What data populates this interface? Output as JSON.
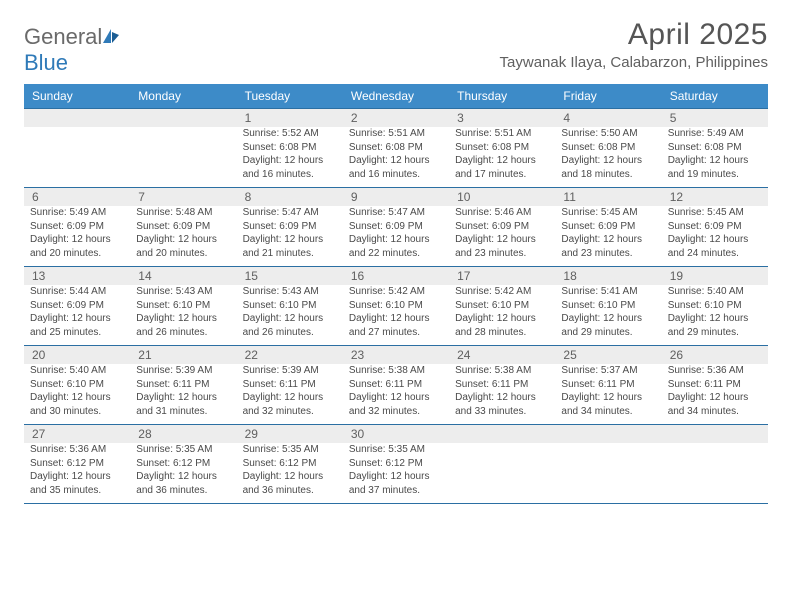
{
  "brand": {
    "part1": "General",
    "part2": "Blue"
  },
  "title": "April 2025",
  "location": "Taywanak Ilaya, Calabarzon, Philippines",
  "weekdays": [
    "Sunday",
    "Monday",
    "Tuesday",
    "Wednesday",
    "Thursday",
    "Friday",
    "Saturday"
  ],
  "colors": {
    "header_bg": "#3d8bc8",
    "header_text": "#ffffff",
    "rule": "#2b6fa3",
    "daynum_bg": "#ededed",
    "body_text": "#4a4a4a",
    "title_text": "#555555",
    "logo_gray": "#6a6a6a",
    "logo_blue": "#2f7ab8"
  },
  "typography": {
    "title_fontsize": 30,
    "location_fontsize": 15,
    "weekday_fontsize": 12,
    "daynum_fontsize": 12,
    "cell_fontsize": 10
  },
  "weeks": [
    [
      null,
      null,
      {
        "n": "1",
        "sr": "Sunrise: 5:52 AM",
        "ss": "Sunset: 6:08 PM",
        "d1": "Daylight: 12 hours",
        "d2": "and 16 minutes."
      },
      {
        "n": "2",
        "sr": "Sunrise: 5:51 AM",
        "ss": "Sunset: 6:08 PM",
        "d1": "Daylight: 12 hours",
        "d2": "and 16 minutes."
      },
      {
        "n": "3",
        "sr": "Sunrise: 5:51 AM",
        "ss": "Sunset: 6:08 PM",
        "d1": "Daylight: 12 hours",
        "d2": "and 17 minutes."
      },
      {
        "n": "4",
        "sr": "Sunrise: 5:50 AM",
        "ss": "Sunset: 6:08 PM",
        "d1": "Daylight: 12 hours",
        "d2": "and 18 minutes."
      },
      {
        "n": "5",
        "sr": "Sunrise: 5:49 AM",
        "ss": "Sunset: 6:08 PM",
        "d1": "Daylight: 12 hours",
        "d2": "and 19 minutes."
      }
    ],
    [
      {
        "n": "6",
        "sr": "Sunrise: 5:49 AM",
        "ss": "Sunset: 6:09 PM",
        "d1": "Daylight: 12 hours",
        "d2": "and 20 minutes."
      },
      {
        "n": "7",
        "sr": "Sunrise: 5:48 AM",
        "ss": "Sunset: 6:09 PM",
        "d1": "Daylight: 12 hours",
        "d2": "and 20 minutes."
      },
      {
        "n": "8",
        "sr": "Sunrise: 5:47 AM",
        "ss": "Sunset: 6:09 PM",
        "d1": "Daylight: 12 hours",
        "d2": "and 21 minutes."
      },
      {
        "n": "9",
        "sr": "Sunrise: 5:47 AM",
        "ss": "Sunset: 6:09 PM",
        "d1": "Daylight: 12 hours",
        "d2": "and 22 minutes."
      },
      {
        "n": "10",
        "sr": "Sunrise: 5:46 AM",
        "ss": "Sunset: 6:09 PM",
        "d1": "Daylight: 12 hours",
        "d2": "and 23 minutes."
      },
      {
        "n": "11",
        "sr": "Sunrise: 5:45 AM",
        "ss": "Sunset: 6:09 PM",
        "d1": "Daylight: 12 hours",
        "d2": "and 23 minutes."
      },
      {
        "n": "12",
        "sr": "Sunrise: 5:45 AM",
        "ss": "Sunset: 6:09 PM",
        "d1": "Daylight: 12 hours",
        "d2": "and 24 minutes."
      }
    ],
    [
      {
        "n": "13",
        "sr": "Sunrise: 5:44 AM",
        "ss": "Sunset: 6:09 PM",
        "d1": "Daylight: 12 hours",
        "d2": "and 25 minutes."
      },
      {
        "n": "14",
        "sr": "Sunrise: 5:43 AM",
        "ss": "Sunset: 6:10 PM",
        "d1": "Daylight: 12 hours",
        "d2": "and 26 minutes."
      },
      {
        "n": "15",
        "sr": "Sunrise: 5:43 AM",
        "ss": "Sunset: 6:10 PM",
        "d1": "Daylight: 12 hours",
        "d2": "and 26 minutes."
      },
      {
        "n": "16",
        "sr": "Sunrise: 5:42 AM",
        "ss": "Sunset: 6:10 PM",
        "d1": "Daylight: 12 hours",
        "d2": "and 27 minutes."
      },
      {
        "n": "17",
        "sr": "Sunrise: 5:42 AM",
        "ss": "Sunset: 6:10 PM",
        "d1": "Daylight: 12 hours",
        "d2": "and 28 minutes."
      },
      {
        "n": "18",
        "sr": "Sunrise: 5:41 AM",
        "ss": "Sunset: 6:10 PM",
        "d1": "Daylight: 12 hours",
        "d2": "and 29 minutes."
      },
      {
        "n": "19",
        "sr": "Sunrise: 5:40 AM",
        "ss": "Sunset: 6:10 PM",
        "d1": "Daylight: 12 hours",
        "d2": "and 29 minutes."
      }
    ],
    [
      {
        "n": "20",
        "sr": "Sunrise: 5:40 AM",
        "ss": "Sunset: 6:10 PM",
        "d1": "Daylight: 12 hours",
        "d2": "and 30 minutes."
      },
      {
        "n": "21",
        "sr": "Sunrise: 5:39 AM",
        "ss": "Sunset: 6:11 PM",
        "d1": "Daylight: 12 hours",
        "d2": "and 31 minutes."
      },
      {
        "n": "22",
        "sr": "Sunrise: 5:39 AM",
        "ss": "Sunset: 6:11 PM",
        "d1": "Daylight: 12 hours",
        "d2": "and 32 minutes."
      },
      {
        "n": "23",
        "sr": "Sunrise: 5:38 AM",
        "ss": "Sunset: 6:11 PM",
        "d1": "Daylight: 12 hours",
        "d2": "and 32 minutes."
      },
      {
        "n": "24",
        "sr": "Sunrise: 5:38 AM",
        "ss": "Sunset: 6:11 PM",
        "d1": "Daylight: 12 hours",
        "d2": "and 33 minutes."
      },
      {
        "n": "25",
        "sr": "Sunrise: 5:37 AM",
        "ss": "Sunset: 6:11 PM",
        "d1": "Daylight: 12 hours",
        "d2": "and 34 minutes."
      },
      {
        "n": "26",
        "sr": "Sunrise: 5:36 AM",
        "ss": "Sunset: 6:11 PM",
        "d1": "Daylight: 12 hours",
        "d2": "and 34 minutes."
      }
    ],
    [
      {
        "n": "27",
        "sr": "Sunrise: 5:36 AM",
        "ss": "Sunset: 6:12 PM",
        "d1": "Daylight: 12 hours",
        "d2": "and 35 minutes."
      },
      {
        "n": "28",
        "sr": "Sunrise: 5:35 AM",
        "ss": "Sunset: 6:12 PM",
        "d1": "Daylight: 12 hours",
        "d2": "and 36 minutes."
      },
      {
        "n": "29",
        "sr": "Sunrise: 5:35 AM",
        "ss": "Sunset: 6:12 PM",
        "d1": "Daylight: 12 hours",
        "d2": "and 36 minutes."
      },
      {
        "n": "30",
        "sr": "Sunrise: 5:35 AM",
        "ss": "Sunset: 6:12 PM",
        "d1": "Daylight: 12 hours",
        "d2": "and 37 minutes."
      },
      null,
      null,
      null
    ]
  ]
}
